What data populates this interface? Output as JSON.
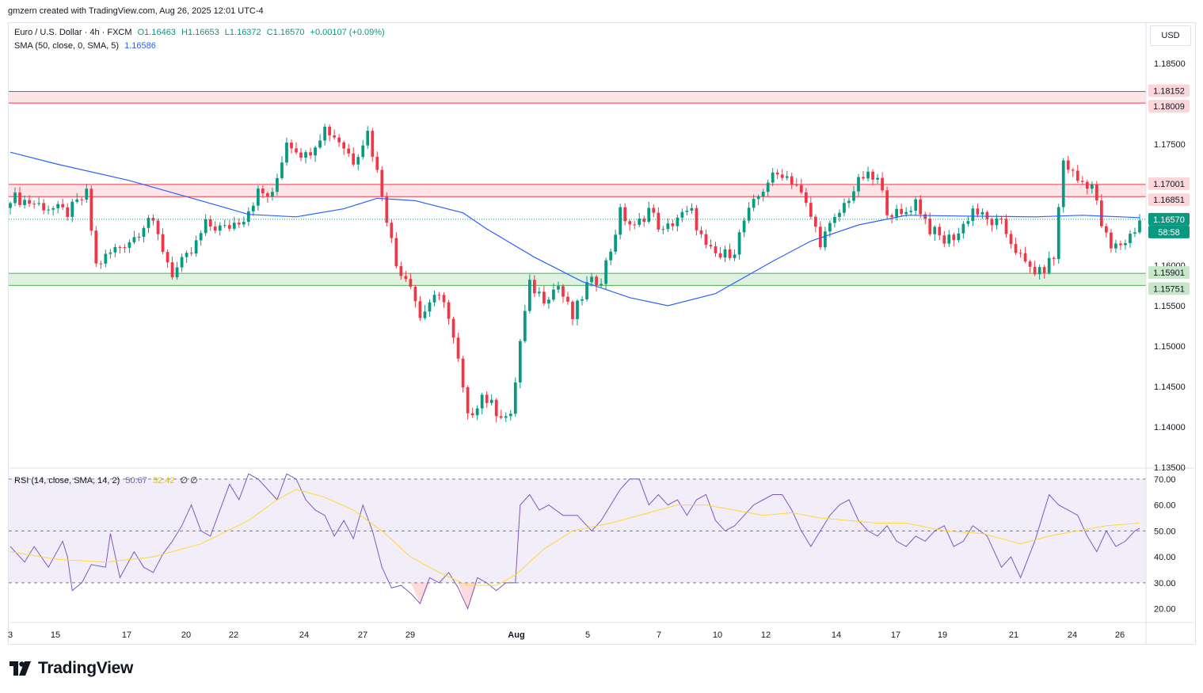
{
  "header": {
    "text": "gmzern created with TradingView.com, Aug 26, 2025 12:01 UTC-4"
  },
  "legend": {
    "symbol": "Euro / U.S. Dollar · 4h · FXCM",
    "o": "O1.16463",
    "h": "H1.16653",
    "l": "L1.16372",
    "c": "C1.16570",
    "chg": "+0.00107 (+0.09%)",
    "sma_label": "SMA (50, close, 0, SMA, 5)",
    "sma_value": "1.16586",
    "rsi_label": "RSI (14, close, SMA, 14, 2)",
    "rsi_value": "50.67",
    "rsi_sma_value": "52.42",
    "rsi_extra": "∅ ∅"
  },
  "currency": "USD",
  "brand": "TradingView",
  "colors": {
    "up": "#089981",
    "down": "#f23645",
    "sma": "#2962ff",
    "rsi": "#7e57c2",
    "rsi_sma": "#fdd835",
    "resistance": "#f23645",
    "support": "#4caf50"
  },
  "chart_data": [
    {
      "type": "candlestick",
      "symbol": "EURUSD",
      "timeframe": "4h",
      "ylim": [
        1.135,
        1.19
      ],
      "y_ticks": [
        "1.18500",
        "1.17500",
        "1.16000",
        "1.15500",
        "1.15000",
        "1.14500",
        "1.14000",
        "1.13500"
      ],
      "x_ticks": [
        "3",
        "15",
        "17",
        "20",
        "22",
        "24",
        "27",
        "29",
        "Aug",
        "5",
        "7",
        "10",
        "12",
        "14",
        "17",
        "19",
        "21",
        "24",
        "26"
      ],
      "zones": [
        {
          "kind": "resistance",
          "top": 1.18152,
          "bottom": 1.18009,
          "top_label": "1.18152",
          "bottom_label": "1.18009"
        },
        {
          "kind": "resistance",
          "top": 1.17001,
          "bottom": 1.16851,
          "top_label": "1.17001",
          "bottom_label": "1.16851"
        },
        {
          "kind": "support",
          "top": 1.15901,
          "bottom": 1.15751,
          "top_label": "1.15901",
          "bottom_label": "1.15751"
        }
      ],
      "last_price": 1.1657,
      "last_price_label": "1.16570",
      "countdown": "58:58",
      "close_path": [
        [
          0,
          1.1685
        ],
        [
          6,
          1.1675
        ],
        [
          12,
          1.1665
        ],
        [
          16,
          1.1688
        ],
        [
          18,
          1.16
        ],
        [
          22,
          1.162
        ],
        [
          26,
          1.1635
        ],
        [
          29,
          1.166
        ],
        [
          31,
          1.1635
        ],
        [
          34,
          1.159
        ],
        [
          38,
          1.1615
        ],
        [
          41,
          1.165
        ],
        [
          45,
          1.1645
        ],
        [
          49,
          1.166
        ],
        [
          52,
          1.169
        ],
        [
          55,
          1.1685
        ],
        [
          58,
          1.1755
        ],
        [
          62,
          1.1735
        ],
        [
          66,
          1.177
        ],
        [
          69,
          1.1755
        ],
        [
          72,
          1.173
        ],
        [
          75,
          1.1765
        ],
        [
          78,
          1.169
        ],
        [
          81,
          1.16
        ],
        [
          84,
          1.158
        ],
        [
          86,
          1.1535
        ],
        [
          88,
          1.1555
        ],
        [
          91,
          1.156
        ],
        [
          94,
          1.148
        ],
        [
          96,
          1.141
        ],
        [
          99,
          1.144
        ],
        [
          102,
          1.142
        ],
        [
          105,
          1.141
        ],
        [
          107,
          1.1505
        ],
        [
          109,
          1.1575
        ],
        [
          112,
          1.156
        ],
        [
          115,
          1.1575
        ],
        [
          118,
          1.1535
        ],
        [
          121,
          1.1575
        ],
        [
          124,
          1.1585
        ],
        [
          126,
          1.162
        ],
        [
          128,
          1.1665
        ],
        [
          131,
          1.1645
        ],
        [
          134,
          1.167
        ],
        [
          137,
          1.164
        ],
        [
          140,
          1.166
        ],
        [
          143,
          1.1665
        ],
        [
          146,
          1.162
        ],
        [
          149,
          1.161
        ],
        [
          152,
          1.162
        ],
        [
          154,
          1.1655
        ],
        [
          157,
          1.1685
        ],
        [
          159,
          1.1705
        ],
        [
          162,
          1.1715
        ],
        [
          165,
          1.17
        ],
        [
          168,
          1.166
        ],
        [
          170,
          1.163
        ],
        [
          173,
          1.1655
        ],
        [
          176,
          1.1685
        ],
        [
          179,
          1.171
        ],
        [
          182,
          1.1705
        ],
        [
          184,
          1.167
        ],
        [
          187,
          1.166
        ],
        [
          190,
          1.168
        ],
        [
          193,
          1.1645
        ],
        [
          196,
          1.163
        ],
        [
          199,
          1.164
        ],
        [
          202,
          1.167
        ],
        [
          205,
          1.1655
        ],
        [
          208,
          1.165
        ],
        [
          211,
          1.162
        ],
        [
          213,
          1.16
        ],
        [
          216,
          1.159
        ],
        [
          219,
          1.161
        ],
        [
          221,
          1.173
        ],
        [
          224,
          1.1705
        ],
        [
          227,
          1.17
        ],
        [
          229,
          1.165
        ],
        [
          231,
          1.162
        ],
        [
          234,
          1.163
        ],
        [
          236,
          1.1645
        ],
        [
          237,
          1.1657
        ]
      ],
      "sma_path": [
        [
          0,
          1.174
        ],
        [
          10,
          1.1725
        ],
        [
          25,
          1.1705
        ],
        [
          40,
          1.168
        ],
        [
          50,
          1.1663
        ],
        [
          60,
          1.166
        ],
        [
          70,
          1.167
        ],
        [
          77,
          1.1683
        ],
        [
          85,
          1.168
        ],
        [
          95,
          1.1665
        ],
        [
          100,
          1.1645
        ],
        [
          110,
          1.161
        ],
        [
          120,
          1.158
        ],
        [
          130,
          1.156
        ],
        [
          138,
          1.155
        ],
        [
          148,
          1.1565
        ],
        [
          160,
          1.1605
        ],
        [
          168,
          1.163
        ],
        [
          178,
          1.165
        ],
        [
          188,
          1.1662
        ],
        [
          200,
          1.1661
        ],
        [
          215,
          1.166
        ],
        [
          225,
          1.1662
        ],
        [
          237,
          1.1659
        ]
      ],
      "candle_count": 238
    },
    {
      "type": "line",
      "title": "RSI (14, close, SMA, 14, 2)",
      "ylim": [
        15,
        73
      ],
      "y_ticks": [
        70,
        60,
        50,
        40,
        30,
        20
      ],
      "bands": [
        30,
        70
      ],
      "midline": 50,
      "series": [
        {
          "name": "RSI",
          "values": [
            [
              0,
              44
            ],
            [
              3,
              38
            ],
            [
              5,
              44
            ],
            [
              8,
              36
            ],
            [
              11,
              46
            ],
            [
              12,
              40
            ],
            [
              13,
              27
            ],
            [
              15,
              30
            ],
            [
              17,
              37
            ],
            [
              20,
              36
            ],
            [
              21,
              49
            ],
            [
              23,
              32
            ],
            [
              26,
              42
            ],
            [
              28,
              36
            ],
            [
              30,
              34
            ],
            [
              32,
              41
            ],
            [
              34,
              46
            ],
            [
              36,
              52
            ],
            [
              38,
              60
            ],
            [
              40,
              50
            ],
            [
              42,
              48
            ],
            [
              44,
              58
            ],
            [
              46,
              68
            ],
            [
              48,
              62
            ],
            [
              50,
              72
            ],
            [
              52,
              70
            ],
            [
              54,
              66
            ],
            [
              56,
              62
            ],
            [
              58,
              72
            ],
            [
              60,
              70
            ],
            [
              62,
              62
            ],
            [
              64,
              58
            ],
            [
              66,
              56
            ],
            [
              68,
              48
            ],
            [
              70,
              54
            ],
            [
              72,
              47
            ],
            [
              74,
              60
            ],
            [
              76,
              50
            ],
            [
              78,
              36
            ],
            [
              80,
              28
            ],
            [
              82,
              29
            ],
            [
              84,
              26
            ],
            [
              86,
              22
            ],
            [
              88,
              32
            ],
            [
              90,
              30
            ],
            [
              92,
              34
            ],
            [
              94,
              28
            ],
            [
              96,
              20
            ],
            [
              98,
              32
            ],
            [
              100,
              30
            ],
            [
              102,
              27
            ],
            [
              104,
              30
            ],
            [
              106,
              30
            ],
            [
              107,
              60
            ],
            [
              109,
              64
            ],
            [
              111,
              58
            ],
            [
              113,
              60
            ],
            [
              116,
              56
            ],
            [
              119,
              56
            ],
            [
              122,
              50
            ],
            [
              124,
              54
            ],
            [
              126,
              60
            ],
            [
              128,
              66
            ],
            [
              130,
              70
            ],
            [
              132,
              70
            ],
            [
              134,
              60
            ],
            [
              136,
              64
            ],
            [
              138,
              60
            ],
            [
              140,
              62
            ],
            [
              142,
              56
            ],
            [
              144,
              62
            ],
            [
              146,
              64
            ],
            [
              148,
              54
            ],
            [
              150,
              50
            ],
            [
              152,
              52
            ],
            [
              154,
              56
            ],
            [
              156,
              60
            ],
            [
              158,
              62
            ],
            [
              160,
              64
            ],
            [
              162,
              64
            ],
            [
              164,
              58
            ],
            [
              166,
              50
            ],
            [
              168,
              44
            ],
            [
              170,
              50
            ],
            [
              172,
              56
            ],
            [
              174,
              60
            ],
            [
              176,
              62
            ],
            [
              178,
              54
            ],
            [
              180,
              50
            ],
            [
              182,
              48
            ],
            [
              184,
              52
            ],
            [
              186,
              46
            ],
            [
              188,
              44
            ],
            [
              190,
              48
            ],
            [
              192,
              46
            ],
            [
              194,
              50
            ],
            [
              196,
              52
            ],
            [
              198,
              44
            ],
            [
              200,
              46
            ],
            [
              202,
              52
            ],
            [
              205,
              48
            ],
            [
              208,
              36
            ],
            [
              210,
              40
            ],
            [
              212,
              32
            ],
            [
              215,
              46
            ],
            [
              216,
              52
            ],
            [
              218,
              64
            ],
            [
              220,
              60
            ],
            [
              222,
              58
            ],
            [
              224,
              56
            ],
            [
              226,
              48
            ],
            [
              228,
              42
            ],
            [
              230,
              50
            ],
            [
              232,
              44
            ],
            [
              234,
              46
            ],
            [
              236,
              50
            ],
            [
              237,
              51
            ]
          ]
        },
        {
          "name": "RSI SMA",
          "values": [
            [
              0,
              42
            ],
            [
              10,
              39
            ],
            [
              20,
              38
            ],
            [
              30,
              40
            ],
            [
              40,
              45
            ],
            [
              50,
              54
            ],
            [
              56,
              62
            ],
            [
              60,
              66
            ],
            [
              66,
              63
            ],
            [
              72,
              58
            ],
            [
              78,
              50
            ],
            [
              84,
              40
            ],
            [
              90,
              34
            ],
            [
              96,
              29
            ],
            [
              102,
              29
            ],
            [
              106,
              33
            ],
            [
              112,
              43
            ],
            [
              118,
              50
            ],
            [
              126,
              53
            ],
            [
              134,
              57
            ],
            [
              140,
              60
            ],
            [
              146,
              60
            ],
            [
              152,
              58
            ],
            [
              158,
              56
            ],
            [
              164,
              57
            ],
            [
              170,
              55
            ],
            [
              176,
              54
            ],
            [
              182,
              53
            ],
            [
              188,
              53
            ],
            [
              196,
              50
            ],
            [
              204,
              49
            ],
            [
              212,
              45
            ],
            [
              218,
              48
            ],
            [
              224,
              50
            ],
            [
              230,
              52
            ],
            [
              237,
              53
            ]
          ]
        }
      ]
    }
  ]
}
